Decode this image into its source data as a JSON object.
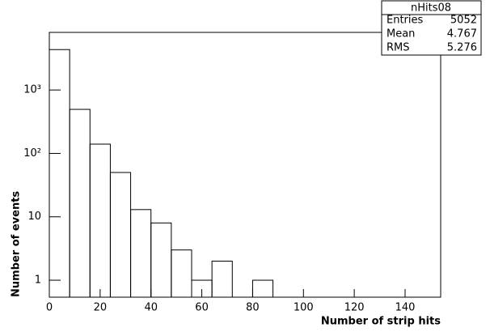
{
  "chart_data": {
    "type": "histogram",
    "xlabel": "Number of strip hits",
    "ylabel": "Number of events",
    "bins": [
      0,
      8,
      16,
      24,
      32,
      40,
      48,
      56,
      64,
      72,
      80,
      88
    ],
    "values": [
      4339,
      495,
      140,
      50,
      13,
      8,
      3,
      1,
      2,
      0,
      1
    ],
    "color": "#000000",
    "xlim": [
      0,
      154
    ],
    "xticks": [
      0,
      20,
      40,
      60,
      80,
      100,
      120,
      140
    ],
    "ylim": [
      0.54,
      8100
    ],
    "log_y": true,
    "yticks": [
      1,
      10,
      {
        "value": 100,
        "label": "10²"
      },
      {
        "value": 1000,
        "label": "10³"
      }
    ],
    "stats": {
      "title": "nHits08",
      "rows": [
        [
          "Entries",
          5052
        ],
        [
          "Mean",
          4.767
        ],
        [
          "RMS",
          5.276
        ]
      ]
    }
  }
}
